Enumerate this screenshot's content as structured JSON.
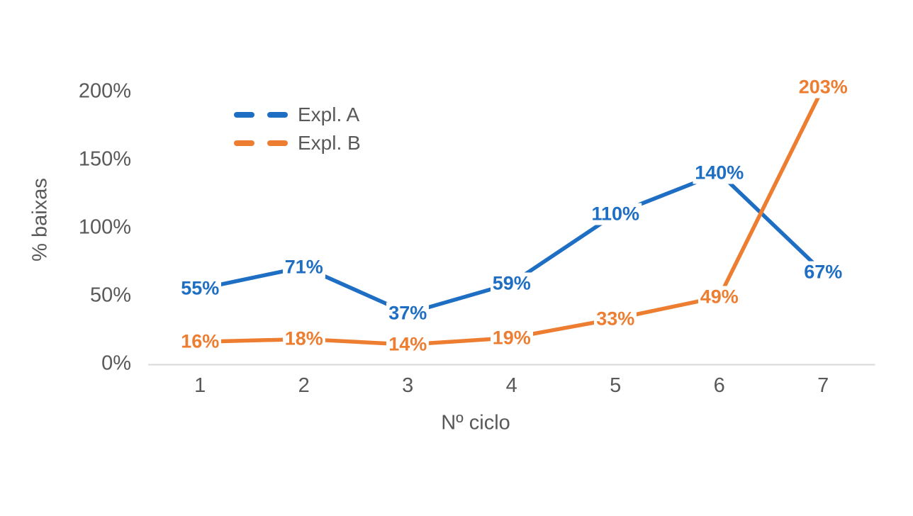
{
  "chart_data": {
    "type": "line",
    "title": "",
    "xlabel": "Nº ciclo",
    "ylabel": "% baixas",
    "categories": [
      "1",
      "2",
      "3",
      "4",
      "5",
      "6",
      "7"
    ],
    "series": [
      {
        "name": "Expl. A",
        "color": "#1E6EC3",
        "values": [
          55,
          71,
          37,
          59,
          110,
          140,
          67
        ],
        "labels": [
          "55%",
          "71%",
          "37%",
          "59%",
          "110%",
          "140%",
          "67%"
        ]
      },
      {
        "name": "Expl. B",
        "color": "#ED7D31",
        "values": [
          16,
          18,
          14,
          19,
          33,
          49,
          203
        ],
        "labels": [
          "16%",
          "18%",
          "14%",
          "19%",
          "33%",
          "49%",
          "203%"
        ]
      }
    ],
    "y_axis": {
      "min": 0,
      "max": 200,
      "ticks": [
        {
          "value": 0,
          "label": "0%"
        },
        {
          "value": 50,
          "label": "50%"
        },
        {
          "value": 100,
          "label": "100%"
        },
        {
          "value": 150,
          "label": "150%"
        },
        {
          "value": 200,
          "label": "200%"
        }
      ]
    },
    "grid": false,
    "legend": {
      "position": "inset-top-left",
      "swatch_style": "dashed"
    },
    "colors": {
      "axis_line": "#D9D9D9",
      "text": "#595959",
      "background": "#FFFFFF"
    }
  }
}
